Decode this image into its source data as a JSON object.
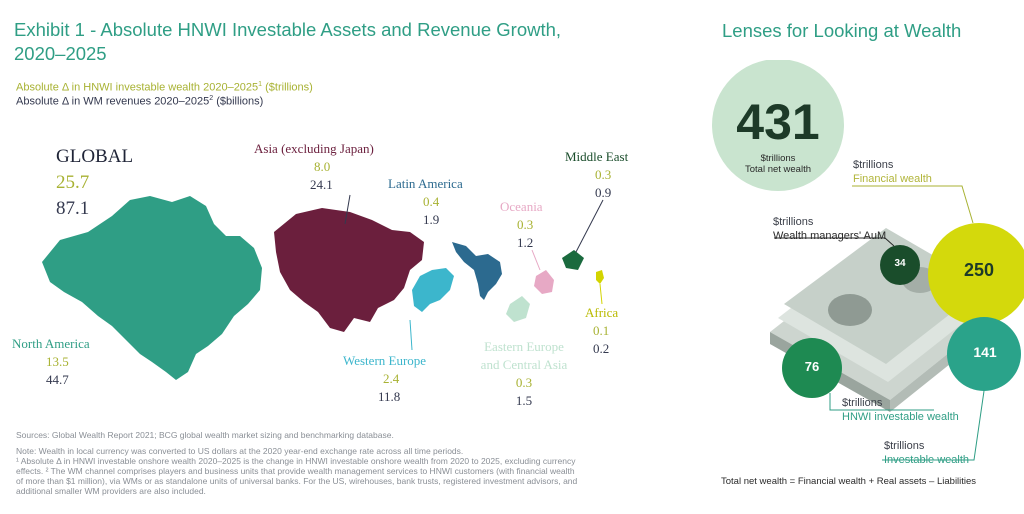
{
  "exhibit": {
    "title": "Exhibit 1 - Absolute HNWI Investable Assets and Revenue Growth, 2020–2025",
    "subtitle_wealth": "Absolute Δ in HNWI investable wealth 2020–2025",
    "subtitle_wealth_unit": " ($trillions)",
    "subtitle_revenue": "Absolute Δ in WM revenues 2020–2025",
    "subtitle_revenue_unit": " ($billions)",
    "footnote_marker_1": "1",
    "footnote_marker_2": "2"
  },
  "chart_data": [
    {
      "type": "table",
      "title": "Exhibit 1 - Absolute HNWI Investable Assets and Revenue Growth, 2020–2025",
      "series": [
        {
          "name": "Absolute Δ in HNWI investable wealth 2020–2025 ($trillions)",
          "values": [
            25.7,
            8.0,
            0.4,
            0.3,
            0.3,
            13.5,
            2.4,
            0.3,
            0.1
          ]
        },
        {
          "name": "Absolute Δ in WM revenues 2020–2025 ($billions)",
          "values": [
            87.1,
            24.1,
            1.9,
            1.2,
            0.9,
            44.7,
            11.8,
            1.5,
            0.2
          ]
        }
      ],
      "categories": [
        "GLOBAL",
        "Asia (excluding Japan)",
        "Latin America",
        "Oceania",
        "Middle East",
        "North America",
        "Western Europe",
        "Eastern Europe and Central Asia",
        "Africa"
      ]
    },
    {
      "type": "bubble",
      "title": "Lenses for Looking at Wealth",
      "items": [
        {
          "label": "Total net wealth",
          "unit": "$trillions",
          "value": 431
        },
        {
          "label": "Financial wealth",
          "unit": "$trillions",
          "value": 250
        },
        {
          "label": "Investable wealth",
          "unit": "$trillions",
          "value": 141
        },
        {
          "label": "HNWI investable wealth",
          "unit": "$trillions",
          "value": 76
        },
        {
          "label": "Wealth managers' AuM",
          "unit": "$trillions",
          "value": 34
        }
      ]
    }
  ],
  "regions": {
    "global": {
      "name": "GLOBAL",
      "wealth": "25.7",
      "revenue": "87.1"
    },
    "asia": {
      "name": "Asia (excluding Japan)",
      "wealth": "8.0",
      "revenue": "24.1",
      "color": "#6b1f3d"
    },
    "latam": {
      "name": "Latin America",
      "wealth": "0.4",
      "revenue": "1.9",
      "color": "#2c6a8f"
    },
    "oceania": {
      "name": "Oceania",
      "wealth": "0.3",
      "revenue": "1.2",
      "color": "#e7a9c5"
    },
    "mideast": {
      "name": "Middle East",
      "wealth": "0.3",
      "revenue": "0.9",
      "color": "#1a6a3e"
    },
    "namerica": {
      "name": "North America",
      "wealth": "13.5",
      "revenue": "44.7",
      "color": "#2f9e85"
    },
    "weurope": {
      "name": "Western Europe",
      "wealth": "2.4",
      "revenue": "11.8",
      "color": "#3cb6cc"
    },
    "eeurope": {
      "name": "Eastern Europe",
      "name2": "and Central Asia",
      "wealth": "0.3",
      "revenue": "1.5",
      "color": "#bfe2cf"
    },
    "africa": {
      "name": "Africa",
      "wealth": "0.1",
      "revenue": "0.2",
      "color": "#d3d400"
    }
  },
  "lenses": {
    "title": "Lenses for Looking at Wealth",
    "total": {
      "value": "431",
      "unit": "$trillions",
      "label": "Total net wealth",
      "color": "#c9e4cf"
    },
    "financial": {
      "value": "250",
      "unit": "$trillions",
      "label": "Financial wealth",
      "color": "#d4d90c"
    },
    "investable": {
      "value": "141",
      "unit": "$trillions",
      "label": "Investable wealth",
      "color": "#2aa38a"
    },
    "hnwi": {
      "value": "76",
      "unit": "$trillions",
      "label": "HNWI investable wealth",
      "color": "#1e8a52"
    },
    "aum": {
      "value": "34",
      "unit": "$trillions",
      "label": "Wealth managers' AuM",
      "color": "#1a4d2b"
    },
    "formula": "Total net wealth = Financial wealth + Real assets – Liabilities"
  },
  "notes": {
    "sources": "Sources: Global Wealth Report 2021; BCG global wealth market sizing and benchmarking database.",
    "note1": "Note: Wealth in local currency was converted to US dollars at the 2020 year-end exchange rate across all time periods.",
    "note2": "¹ Absolute Δ in HNWI investable onshore wealth 2020–2025 is the change in HNWI investable onshore wealth from 2020 to 2025, excluding currency",
    "note3": "effects. ² The WM channel comprises players and business units that provide wealth management services to HNWI customers (with financial wealth",
    "note4": "of more than $1 million), via WMs or as standalone units of universal banks. For the US, wirehouses, bank trusts, registered investment advisors, and",
    "note5": "additional smaller WM providers are also included."
  }
}
